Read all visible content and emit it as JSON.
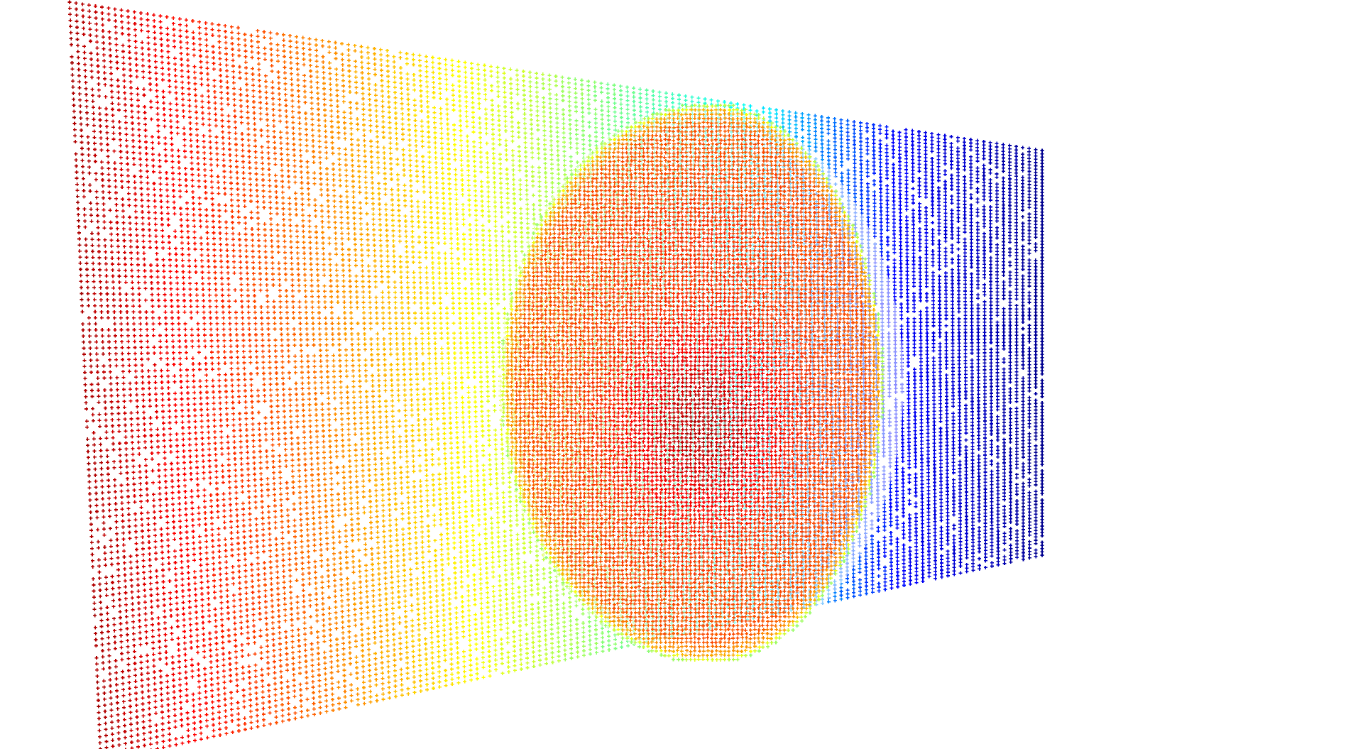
{
  "scene": {
    "description_visible_text": "",
    "background_color": "#ffffff",
    "colormap": "jet",
    "colormap_stops": [
      "#00008f",
      "#0000ff",
      "#00ffff",
      "#7fff7f",
      "#ffff00",
      "#ff8000",
      "#ff0000",
      "#800000"
    ],
    "objects": [
      "point-cloud-backdrop-plane",
      "point-cloud-face"
    ],
    "marker_style": "plus"
  }
}
